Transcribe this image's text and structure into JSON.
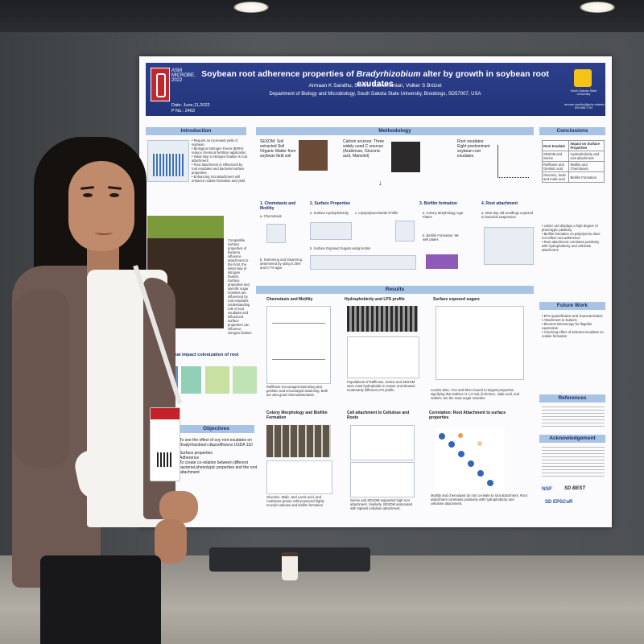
{
  "poster": {
    "title_part1": "Soybean root adherence properties of ",
    "title_italic": "Bradyrhizobium",
    "title_part2": " alter by growth in soybean root exudates",
    "authors": "Armaan K Sandhu, Senthil Subramanian, Volker S Brözel",
    "department": "Department of Biology and Microbiology, South Dakota State University, Brookings, SD57007, USA",
    "conference": "ASM MICROBE, 2022",
    "date": "Date: June,11,2022",
    "poster_no": "P No.: 2463",
    "sdsu": "South Dakota State University",
    "contact": "armaan.sandhu@jacks.sdstate.edu  605-688-7744",
    "sections": {
      "introduction": "Introduction",
      "methodology": "Methodology",
      "conclusions": "Conclusions",
      "results": "Results",
      "future_work": "Future Work",
      "references": "References",
      "acknowledgement": "Acknowledgement",
      "objectives": "Objectives"
    },
    "intro_bullets": [
      "Require an increased yield of soybean",
      "Biological Nitrogen Fixers (BNFs) reduce chemical fertilizer application",
      "Initial step in nitrogen fixation is root attachment",
      "Root attachment is influenced by root exudates and bacterial surface properties",
      "Enhancing root attachment will enhance nodule formation and yield"
    ],
    "intro_text2": "Compatible Surface properties of bacteria influence attachment to the host, the initial step of nitrogen fixation. Surface properties and specific sugar moieties are influenced by root exudates. Understanding role of root exudates and influenced surface properties can influence nitrogen fixation",
    "factors_heading": "Factors that impact colonization of root surface:",
    "objectives": [
      "To see the effect of soy root exudates on Bradyrhizobium diazoefficiens USDA 110",
      "Surface properties",
      "Adherence",
      "To create co-relation between different bacterial phenotypic properties and the root attachment"
    ],
    "methodology": {
      "sesom": "SESOM: Soil extracted Soil Organic Matter from soybean field soil",
      "carbon": "Carbon sources: Three widely used C sources (Arabinose, Gluconic acid, Mannitol)",
      "exudates": "Root exudates: Eight predominant soybean root exudates",
      "step1": "1. Chemotaxis and Motility",
      "step1a": "a. Chemotaxis",
      "step1b": "b. Swimming and Swarming determined by using 0.35% and 0.7% agar",
      "step2": "2. Surface Properties",
      "step2a": "a. Surface Hydrophobicity",
      "step2b": "c. Lipopolysaccharide Profile",
      "step2c": "b. Surface Exposed Sugars using lectins",
      "step3": "3. Biofilm formation",
      "step3a": "a. Colony Morphology Agar Plates",
      "step3b": "b. Biofilm Formation: 96-well plates",
      "step4": "4. Root attachment",
      "step4a": "a. Nine-day old seedlings exposed to bacterial suspension"
    },
    "results": {
      "chemotaxis": "Chemotaxis and Motility",
      "hydro": "Hydrophobicity and LPS profile",
      "sugars": "Surface exposed sugars",
      "colony": "Colony Morphology and Biofilm Formation",
      "cell_attach": "Cell attachment to Cellulose and Roots",
      "correlation": "Correlation: Root Attachment to surface properties",
      "chemo_caption": "Raffinose encouraged swimming and gentisic acid encouraged swarming. Both are also good chemoattractants.",
      "hydro_caption": "Populations of Raffinose, Serine and SESOM were most hydrophobic in nature and showed moderately different LPS profile.",
      "sugar_caption": "Lectins SBA, VVA and WGA bound to largest proportion signifying that GalNAc is 1,3 Gal, β-GlcNAc, sialic acid, and GalNAc are the main sugar moieties.",
      "colony_caption": "Gluconic, Malic, and Lactic acid, and Arabinose grown cells produced highly mucoid colonies and biofilm formation",
      "attach_caption": "Serine and SESOM supported high root attachment. Similarly, SESOM associated with highest cellulose attachment.",
      "corr_caption": "Motility and chemotaxis do not co-relate to root attachment. Root attachment correlates positively with hydrophobicity and cellulose attachment."
    },
    "conclusions_table": [
      [
        "Root Exudate",
        "Impact on Surface Properties"
      ],
      [
        "SESOM and Serine",
        "Hydrophobicity and root attachment"
      ],
      [
        "Raffinose and Gentisic acid",
        "Motility and Chemotaxis"
      ],
      [
        "Gluconic, lactic and malic acid",
        "Biofilm Formation"
      ]
    ],
    "conclusion_bullets": [
      "USDA 110 displays a high degree of phenotypic plasticity",
      "Biofilm formation on polystyrene does not reflect root adherence",
      "Root attachment correlates positively with hydrophobicity and cellulose attachment"
    ],
    "future_work": [
      "EPS quantification and characterization",
      "Attachment to Suberin",
      "Electron Microscopy for flagellar expression",
      "Checking effect of selected exudates on nodule formation"
    ],
    "sponsors": [
      "NSF",
      "SD BEST",
      "SD EPSCoR"
    ]
  },
  "colors": {
    "poster_header": "#22357a",
    "section_header": "#a9c3e4",
    "asm_red": "#c0282d",
    "sdsu_yellow": "#f3c316"
  }
}
